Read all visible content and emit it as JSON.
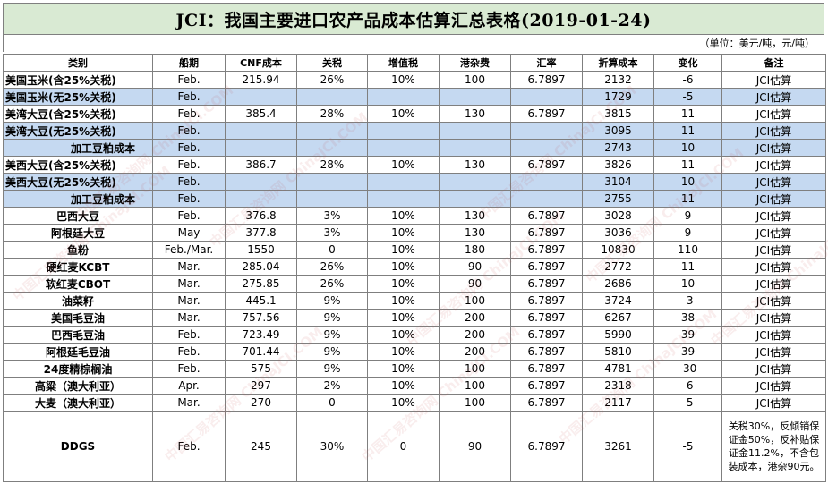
{
  "title": "JCI：我国主要进口农产品成本估算汇总表格(2019-01-24)",
  "unit_note": "（单位：美元/吨，元/吨）",
  "headers": [
    "类别",
    "船期",
    "CNF成本",
    "关税",
    "增值税",
    "港杂费",
    "汇率",
    "折算成本",
    "变化",
    "备注"
  ],
  "rows": [
    {
      "name": "美国玉米(含25%关税)",
      "ship": "Feb.",
      "cnf": "215.94",
      "tariff": "26%",
      "vat": "10%",
      "port": "100",
      "rate": "6.7897",
      "cost": "2132",
      "change": "-6",
      "note": "JCI估算"
    },
    {
      "name": "美国玉米(无25%关税)",
      "ship": "Feb.",
      "cnf": "",
      "tariff": "",
      "vat": "",
      "port": "",
      "rate": "",
      "cost": "1729",
      "change": "-5",
      "note": "JCI估算"
    },
    {
      "name": "美湾大豆(含25%关税)",
      "ship": "Feb.",
      "cnf": "385.4",
      "tariff": "28%",
      "vat": "10%",
      "port": "130",
      "rate": "6.7897",
      "cost": "3815",
      "change": "11",
      "note": "JCI估算"
    },
    {
      "name": "美湾大豆(无25%关税)",
      "ship": "Feb.",
      "cnf": "",
      "tariff": "",
      "vat": "",
      "port": "",
      "rate": "",
      "cost": "3095",
      "change": "11",
      "note": "JCI估算"
    },
    {
      "name": "加工豆粕成本",
      "ship": "Feb.",
      "cnf": "",
      "tariff": "",
      "vat": "",
      "port": "",
      "rate": "",
      "cost": "2743",
      "change": "10",
      "note": "JCI估算"
    },
    {
      "name": "美西大豆(含25%关税)",
      "ship": "Feb.",
      "cnf": "386.7",
      "tariff": "28%",
      "vat": "10%",
      "port": "130",
      "rate": "6.7897",
      "cost": "3826",
      "change": "11",
      "note": "JCI估算"
    },
    {
      "name": "美西大豆(无25%关税)",
      "ship": "Feb.",
      "cnf": "",
      "tariff": "",
      "vat": "",
      "port": "",
      "rate": "",
      "cost": "3104",
      "change": "10",
      "note": "JCI估算"
    },
    {
      "name": "加工豆粕成本",
      "ship": "Feb.",
      "cnf": "",
      "tariff": "",
      "vat": "",
      "port": "",
      "rate": "",
      "cost": "2755",
      "change": "11",
      "note": "JCI估算"
    },
    {
      "name": "巴西大豆",
      "ship": "Feb.",
      "cnf": "376.8",
      "tariff": "3%",
      "vat": "10%",
      "port": "130",
      "rate": "6.7897",
      "cost": "3028",
      "change": "9",
      "note": "JCI估算"
    },
    {
      "name": "阿根廷大豆",
      "ship": "May",
      "cnf": "377.8",
      "tariff": "3%",
      "vat": "10%",
      "port": "130",
      "rate": "6.7897",
      "cost": "3036",
      "change": "9",
      "note": "JCI估算"
    },
    {
      "name": "鱼粉",
      "ship": "Feb./Mar.",
      "cnf": "1550",
      "tariff": "0",
      "vat": "10%",
      "port": "180",
      "rate": "6.7897",
      "cost": "10830",
      "change": "110",
      "note": "JCI估算"
    },
    {
      "name": "硬红麦KCBT",
      "ship": "Mar.",
      "cnf": "285.04",
      "tariff": "26%",
      "vat": "10%",
      "port": "90",
      "rate": "6.7897",
      "cost": "2772",
      "change": "11",
      "note": "JCI估算"
    },
    {
      "name": "软红麦CBOT",
      "ship": "Mar.",
      "cnf": "275.85",
      "tariff": "26%",
      "vat": "10%",
      "port": "90",
      "rate": "6.7897",
      "cost": "2686",
      "change": "10",
      "note": "JCI估算"
    },
    {
      "name": "油菜籽",
      "ship": "Mar.",
      "cnf": "445.1",
      "tariff": "9%",
      "vat": "10%",
      "port": "100",
      "rate": "6.7897",
      "cost": "3724",
      "change": "-3",
      "note": "JCI估算"
    },
    {
      "name": "美国毛豆油",
      "ship": "Mar.",
      "cnf": "757.56",
      "tariff": "9%",
      "vat": "10%",
      "port": "200",
      "rate": "6.7897",
      "cost": "6267",
      "change": "38",
      "note": "JCI估算"
    },
    {
      "name": "巴西毛豆油",
      "ship": "Feb.",
      "cnf": "723.49",
      "tariff": "9%",
      "vat": "10%",
      "port": "200",
      "rate": "6.7897",
      "cost": "5990",
      "change": "39",
      "note": "JCI估算"
    },
    {
      "name": "阿根廷毛豆油",
      "ship": "Feb.",
      "cnf": "701.44",
      "tariff": "9%",
      "vat": "10%",
      "port": "200",
      "rate": "6.7897",
      "cost": "5810",
      "change": "39",
      "note": "JCI估算"
    },
    {
      "name": "24度精棕榈油",
      "ship": "Feb.",
      "cnf": "575",
      "tariff": "9%",
      "vat": "10%",
      "port": "100",
      "rate": "6.7897",
      "cost": "4781",
      "change": "-30",
      "note": "JCI估算"
    },
    {
      "name": "高粱（澳大利亚）",
      "ship": "Apr.",
      "cnf": "297",
      "tariff": "2%",
      "vat": "10%",
      "port": "100",
      "rate": "6.7897",
      "cost": "2318",
      "change": "-6",
      "note": "JCI估算"
    },
    {
      "name": "大麦（澳大利亚）",
      "ship": "Mar.",
      "cnf": "270",
      "tariff": "0",
      "vat": "10%",
      "port": "100",
      "rate": "6.7897",
      "cost": "2117",
      "change": "-5",
      "note": "JCI估算"
    },
    {
      "name": "DDGS",
      "ship": "Feb.",
      "cnf": "245",
      "tariff": "30%",
      "vat": "0",
      "port": "90",
      "rate": "6.7897",
      "cost": "3261",
      "change": "-5",
      "note": "关税30%，反倾销保证金50%，反补贴保证金11.2%，不含包装成本，港杂90元。"
    }
  ],
  "watermark_text": "中国汇易咨询网 ChinaJCI.COM"
}
